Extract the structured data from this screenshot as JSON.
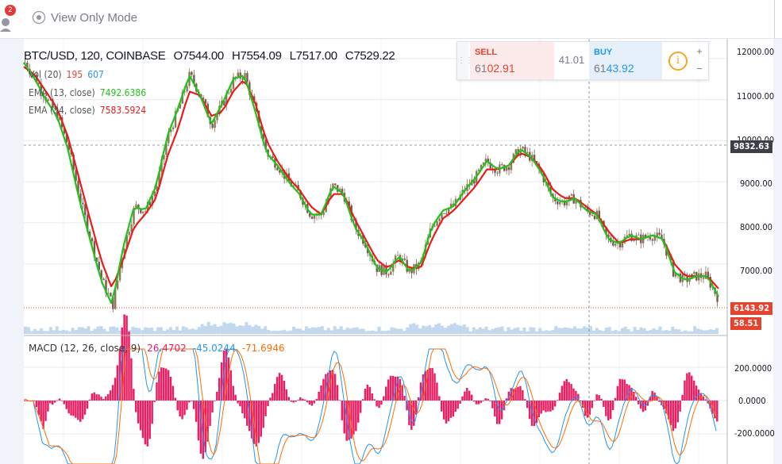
{
  "topbar": {
    "notification_count": "2",
    "view_mode": "View Only Mode"
  },
  "header": {
    "symbol": "BTC/USD, 120, COINBASE",
    "open": "O7544.00",
    "high": "H7554.09",
    "low": "L7517.00",
    "close": "C7529.22"
  },
  "indicators": [
    {
      "label": "Vol (20)",
      "values": [
        "195",
        "607"
      ],
      "colors": [
        "#e8412d",
        "#2196f3"
      ]
    },
    {
      "label": "EMA (13, close)",
      "values": [
        "7492.6386"
      ],
      "colors": [
        "#22c21c"
      ]
    },
    {
      "label": "EMA (34, close)",
      "values": [
        "7583.5924"
      ],
      "colors": [
        "#e81c1c"
      ]
    }
  ],
  "macd_legend": {
    "label": "MACD (12, 26, close, 9)",
    "values": [
      "26.4702",
      "-45.0244",
      "-71.6946"
    ],
    "colors": [
      "#e91e63",
      "#2196f3",
      "#ff6d00"
    ]
  },
  "trade_panel": {
    "sell_label": "SELL",
    "sell_price_a": "61",
    "sell_price_b": "02.91",
    "spread": "41.01",
    "buy_label": "BUY",
    "buy_price_a": "61",
    "buy_price_b": "43.92",
    "plus": "+",
    "minus": "−",
    "info": "i"
  },
  "price_axis": {
    "ticks": [
      "12000.00",
      "11000.00",
      "10000.00",
      "9000.00",
      "8000.00",
      "7000.00"
    ],
    "crosshair_price": "9832.63",
    "last_price": "6143.92",
    "volume_value": "58.51"
  },
  "macd_axis": {
    "ticks": [
      "200.0000",
      "0.0000",
      "-200.0000"
    ]
  },
  "chart_data": {
    "type": "line",
    "title": "BTC/USD, 120, COINBASE",
    "ylim": [
      5700,
      12150
    ],
    "series": [
      {
        "name": "EMA (13, close)",
        "color": "#22c21c",
        "values": [
          11900,
          11500,
          11000,
          10600,
          9800,
          8600,
          7600,
          6600,
          6000,
          7400,
          8400,
          8300,
          8900,
          10100,
          10800,
          11600,
          11100,
          10400,
          10900,
          11500,
          11600,
          10700,
          9700,
          9400,
          9000,
          8700,
          8200,
          8200,
          8900,
          8700,
          7900,
          7500,
          6900,
          6800,
          7200,
          6800,
          7000,
          7900,
          8300,
          8400,
          8800,
          9100,
          9500,
          9300,
          9400,
          9800,
          9600,
          9200,
          8600,
          8500,
          8600,
          8300,
          8200,
          7600,
          7500,
          7700,
          7600,
          7700,
          7600,
          6800,
          6600,
          6700,
          6700,
          6200
        ]
      },
      {
        "name": "EMA (34, close)",
        "color": "#e81c1c",
        "values": [
          11800,
          11600,
          11200,
          10800,
          10100,
          9100,
          8100,
          7100,
          6400,
          7100,
          7900,
          8200,
          8600,
          9600,
          10300,
          11200,
          11100,
          10600,
          10700,
          11200,
          11500,
          10900,
          10000,
          9500,
          9100,
          8800,
          8400,
          8200,
          8700,
          8700,
          8100,
          7600,
          7100,
          6900,
          7100,
          6900,
          6900,
          7600,
          8100,
          8300,
          8600,
          8900,
          9300,
          9300,
          9400,
          9700,
          9600,
          9300,
          8800,
          8600,
          8600,
          8400,
          8200,
          7800,
          7500,
          7600,
          7600,
          7700,
          7600,
          7000,
          6700,
          6700,
          6700,
          6400
        ]
      }
    ],
    "macd_ylim": [
      -330,
      330
    ]
  }
}
